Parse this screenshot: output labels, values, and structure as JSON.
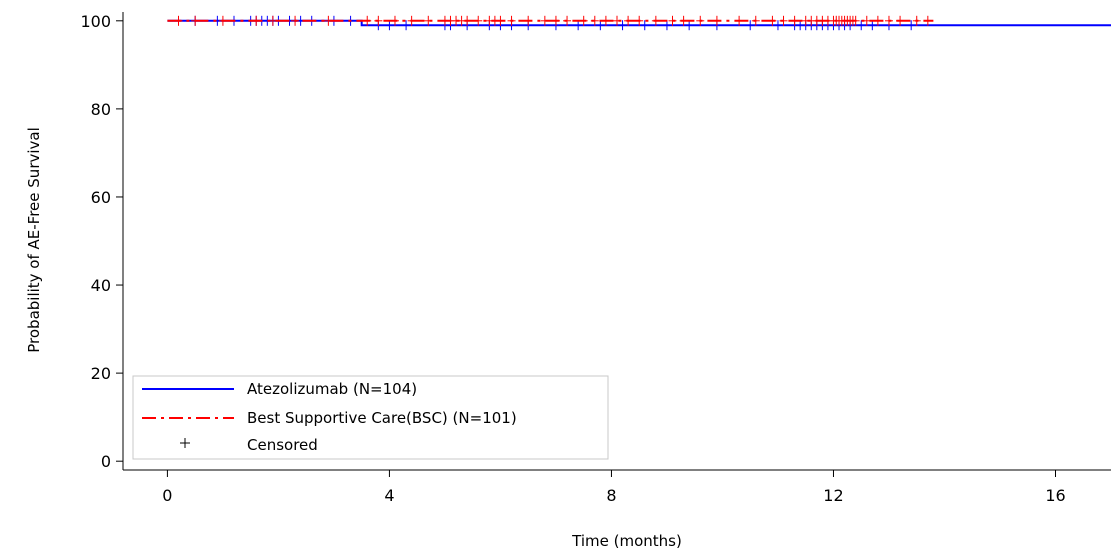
{
  "chart_data": {
    "type": "line",
    "title": "",
    "xlabel": "Time (months)",
    "ylabel": "Probability of AE-Free Survival",
    "xlim": [
      -0.8,
      17
    ],
    "ylim": [
      -2,
      102
    ],
    "xticks": [
      0,
      4,
      8,
      12,
      16
    ],
    "yticks": [
      0,
      20,
      40,
      60,
      80,
      100
    ],
    "grid": false,
    "legend_position": "bottom-left",
    "series": [
      {
        "name": "Atezolizumab (N=104)",
        "color": "#0000ff",
        "dash": "solid",
        "steps": [
          [
            0,
            100
          ],
          [
            3.5,
            100
          ],
          [
            3.5,
            99
          ],
          [
            17,
            99
          ]
        ],
        "censored": [
          0.5,
          0.9,
          1.2,
          1.5,
          1.6,
          1.7,
          1.8,
          1.9,
          2.0,
          2.2,
          2.4,
          2.6,
          3.0,
          3.3,
          3.8,
          4.0,
          4.3,
          5.0,
          5.1,
          5.4,
          5.8,
          6.0,
          6.2,
          6.5,
          7.0,
          7.4,
          7.8,
          8.2,
          8.6,
          9.0,
          9.4,
          9.9,
          10.5,
          11.0,
          11.3,
          11.4,
          11.5,
          11.6,
          11.7,
          11.8,
          11.9,
          12.0,
          12.1,
          12.2,
          12.3,
          12.5,
          12.7,
          13.0,
          13.4
        ]
      },
      {
        "name": "Best Supportive Care(BSC) (N=101)",
        "color": "#ff0000",
        "dash": "dashdot",
        "steps": [
          [
            0,
            100
          ],
          [
            13.8,
            100
          ]
        ],
        "censored": [
          0.2,
          0.5,
          1.0,
          1.6,
          1.9,
          2.3,
          2.9,
          3.6,
          3.8,
          4.1,
          4.4,
          4.7,
          5.0,
          5.1,
          5.2,
          5.3,
          5.4,
          5.6,
          5.8,
          5.9,
          6.0,
          6.2,
          6.5,
          6.8,
          7.0,
          7.2,
          7.5,
          7.7,
          7.9,
          8.1,
          8.3,
          8.5,
          8.8,
          9.1,
          9.3,
          9.6,
          9.9,
          10.3,
          10.6,
          10.9,
          11.1,
          11.3,
          11.5,
          11.6,
          11.7,
          11.8,
          11.9,
          12.0,
          12.05,
          12.1,
          12.15,
          12.2,
          12.25,
          12.3,
          12.35,
          12.4,
          12.6,
          12.8,
          13.0,
          13.2,
          13.5,
          13.7
        ]
      }
    ],
    "legend": {
      "censored_label": "Censored"
    }
  }
}
